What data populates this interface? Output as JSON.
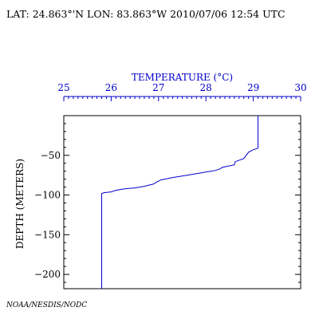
{
  "header": {
    "text": "LAT: 24.863°'N LON: 83.863°W 2010/07/06 12:54 UTC"
  },
  "footer": {
    "credit": "NOAA/NESDIS/NODC"
  },
  "colors": {
    "profile": "#0000cc",
    "top_axis": "#0000cc",
    "frame": "#000000"
  },
  "chart_data": {
    "type": "line",
    "title": "",
    "xlabel": "TEMPERATURE (°C)",
    "ylabel": "DEPTH (METERS)",
    "x_axis_position": "top",
    "xlim": [
      25,
      30
    ],
    "ylim": [
      -218,
      0
    ],
    "x_ticks": [
      "25",
      "26",
      "27",
      "28",
      "29",
      "30"
    ],
    "y_ticks": [
      "-50",
      "-100",
      "-150",
      "-200"
    ],
    "grid": false,
    "series": [
      {
        "x": [
          25.8,
          25.8,
          25.85,
          26.0,
          26.1,
          26.3,
          26.5,
          26.7,
          26.9,
          26.95,
          27.05,
          27.3,
          27.6,
          27.9,
          28.1,
          28.2,
          28.3,
          28.35,
          28.6,
          28.62,
          28.8,
          28.9,
          29.0,
          29.1,
          29.1,
          29.1
        ],
        "y": [
          -218,
          -98,
          -97,
          -96,
          -94,
          -92,
          -91,
          -89,
          -86,
          -84,
          -81,
          -78,
          -75,
          -72,
          -70,
          -69,
          -67,
          -65,
          -62,
          -58,
          -54,
          -46,
          -43,
          -41,
          -39,
          0
        ]
      }
    ]
  }
}
